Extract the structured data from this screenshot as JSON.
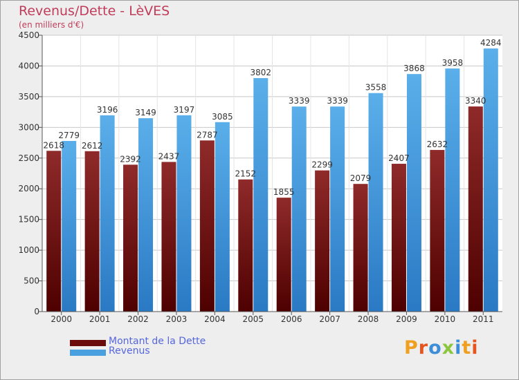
{
  "title": "Revenus/Dette - LèVES",
  "subtitle": "(en milliers d'€)",
  "legend": [
    {
      "label": "Montant de la Dette",
      "color": "#6b0b0b"
    },
    {
      "label": "Revenus",
      "color": "#4a9fdf"
    }
  ],
  "logo": {
    "text": "Proxiti",
    "letters": [
      {
        "ch": "P",
        "color": "#f0a020"
      },
      {
        "ch": "r",
        "color": "#e8541e"
      },
      {
        "ch": "o",
        "color": "#3d8ed8"
      },
      {
        "ch": "x",
        "color": "#8cc63f"
      },
      {
        "ch": "i",
        "color": "#3d8ed8"
      },
      {
        "ch": "t",
        "color": "#f0a020"
      },
      {
        "ch": "i",
        "color": "#e8541e"
      }
    ]
  },
  "chart_data": {
    "type": "bar",
    "title": "Revenus/Dette - LèVES",
    "subtitle": "(en milliers d'€)",
    "categories": [
      "2000",
      "2001",
      "2002",
      "2003",
      "2004",
      "2005",
      "2006",
      "2007",
      "2008",
      "2009",
      "2010",
      "2011"
    ],
    "series": [
      {
        "name": "Montant de la Dette",
        "color": "#7a1a1a",
        "values": [
          2618,
          2612,
          2392,
          2437,
          2787,
          2152,
          1855,
          2299,
          2079,
          2407,
          2632,
          3340
        ]
      },
      {
        "name": "Revenus",
        "color": "#4a9fdf",
        "values": [
          2779,
          3196,
          3149,
          3197,
          3085,
          3802,
          3339,
          3339,
          3558,
          3868,
          3958,
          4284
        ]
      }
    ],
    "ylim": [
      0,
      4500
    ],
    "yticks": [
      0,
      500,
      1000,
      1500,
      2000,
      2500,
      3000,
      3500,
      4000,
      4500
    ],
    "grid": true,
    "legend_position": "bottom-left"
  }
}
